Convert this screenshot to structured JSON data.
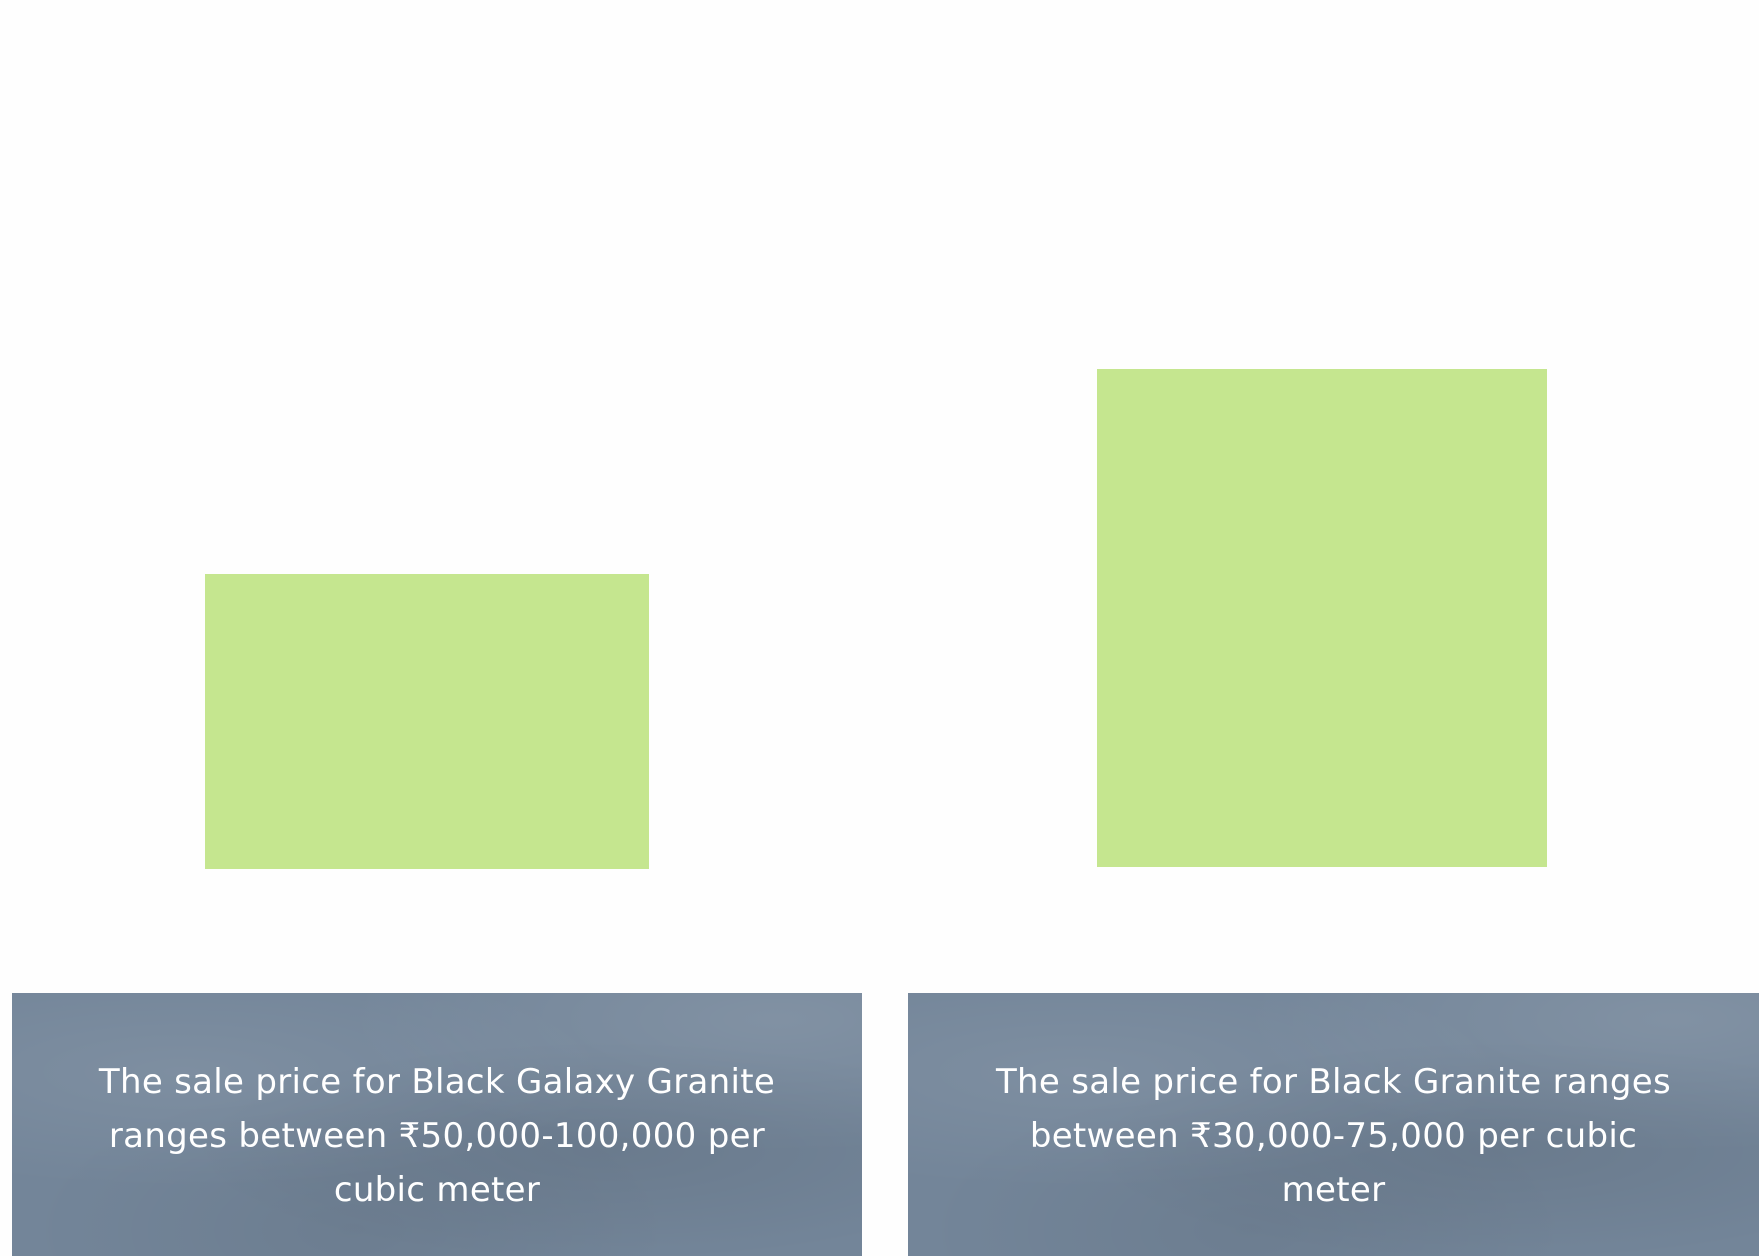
{
  "colors": {
    "page_background": "#fefefe",
    "block_fill": "#c5e68f",
    "panel_fill": "#738599",
    "panel_text": "#ffffff"
  },
  "blocks": [
    {
      "name": "left-green-block"
    },
    {
      "name": "right-green-block"
    }
  ],
  "captions": [
    {
      "text": "The sale price for Black Galaxy Granite ranges between ₹50,000-100,000 per cubic meter"
    },
    {
      "text": "The sale price for Black Granite ranges between ₹30,000-75,000 per cubic meter"
    }
  ]
}
